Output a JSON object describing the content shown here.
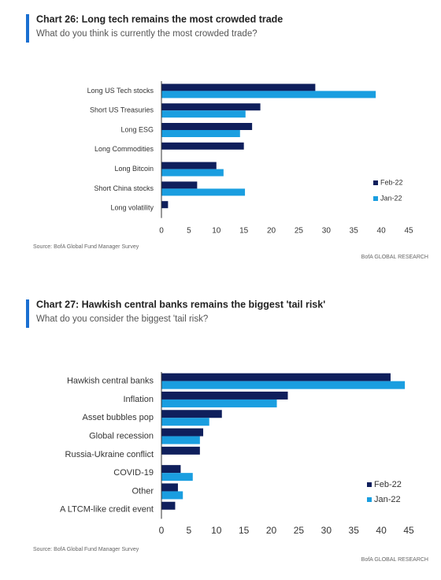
{
  "chart_data": [
    {
      "type": "bar",
      "orientation": "horizontal",
      "title": "Chart 26: Long tech remains the most crowded trade",
      "subtitle": "What do you think is currently the most crowded trade?",
      "categories": [
        "Long US Tech stocks",
        "Short US Treasuries",
        "Long ESG",
        "Long Commodities",
        "Long Bitcoin",
        "Short China stocks",
        "Long volatility"
      ],
      "series": [
        {
          "name": "Feb-22",
          "color": "#0f1f5c",
          "values": [
            28,
            18,
            16.5,
            15,
            10,
            6.5,
            1.2
          ]
        },
        {
          "name": "Jan-22",
          "color": "#1a9ee0",
          "values": [
            39,
            15.3,
            14.3,
            null,
            11.3,
            15.2,
            null
          ]
        }
      ],
      "xlim": [
        0,
        45
      ],
      "xticks": [
        0,
        5,
        10,
        15,
        20,
        25,
        30,
        35,
        40,
        45
      ],
      "source": "Source: BofA Global Fund Manager Survey",
      "footer": "BofA GLOBAL RESEARCH"
    },
    {
      "type": "bar",
      "orientation": "horizontal",
      "title": "Chart 27: Hawkish central banks remains the biggest 'tail risk'",
      "subtitle": "What do you consider the biggest 'tail risk?",
      "categories": [
        "Hawkish central banks",
        "Inflation",
        "Asset bubbles pop",
        "Global recession",
        "Russia-Ukraine conflict",
        "COVID-19",
        "Other",
        "A LTCM-like credit event"
      ],
      "series": [
        {
          "name": "Feb-22",
          "color": "#0f1f5c",
          "values": [
            41.7,
            23,
            11,
            7.6,
            7,
            3.5,
            3,
            2.5
          ]
        },
        {
          "name": "Jan-22",
          "color": "#1a9ee0",
          "values": [
            44.3,
            21,
            8.7,
            7,
            null,
            5.7,
            3.9,
            null
          ]
        }
      ],
      "xlim": [
        0,
        45
      ],
      "xticks": [
        0,
        5,
        10,
        15,
        20,
        25,
        30,
        35,
        40,
        45
      ],
      "source": "Source: BofA Global Fund Manager Survey",
      "footer": "BofA GLOBAL RESEARCH"
    }
  ]
}
